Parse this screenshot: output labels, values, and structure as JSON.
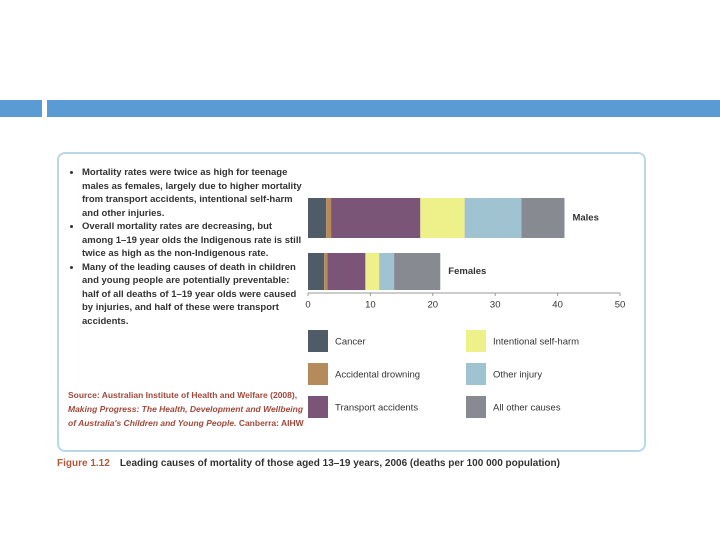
{
  "chart_data": {
    "type": "stacked-bar-horizontal",
    "categories": [
      "Males",
      "Females"
    ],
    "series": [
      {
        "name": "Cancer",
        "color": "#4f5b66",
        "values": [
          2.9,
          2.6
        ]
      },
      {
        "name": "Accidental drowning",
        "color": "#b58b5c",
        "values": [
          0.8,
          0.5
        ]
      },
      {
        "name": "Transport accidents",
        "color": "#7a5577",
        "values": [
          14.3,
          6.1
        ]
      },
      {
        "name": "Intentional self-harm",
        "color": "#eef08a",
        "values": [
          7.1,
          2.2
        ]
      },
      {
        "name": "Other injury",
        "color": "#9fc3d1",
        "values": [
          9.1,
          2.4
        ]
      },
      {
        "name": "All other causes",
        "color": "#878b91",
        "values": [
          6.9,
          7.4
        ]
      }
    ],
    "xlim": [
      0,
      50
    ],
    "xticks": [
      0,
      10,
      20,
      30,
      40,
      50
    ]
  },
  "bullets": [
    "Mortality rates were twice as high for teenage males as females, largely due to higher mortality from transport accidents, intentional self-harm and other injuries.",
    "Overall mortality rates are decreasing, but among 1–19 year olds the Indigenous rate is still twice as high as the non-Indigenous rate.",
    "Many of the leading causes of death in children and young people are potentially preventable: half of all deaths of 1–19 year olds were caused by injuries, and half of these were transport accidents."
  ],
  "source": {
    "prefix": "Source: Australian Institute of Health and Welfare (2008),",
    "title": "Making Progress: The Health, Development and Wellbeing of Australia's Children and Young People.",
    "suffix": "Canberra: AIHW"
  },
  "caption": {
    "label": "Figure 1.12",
    "text": "Leading causes of mortality of those aged 13–19 years, 2006 (deaths per 100 000 population)"
  }
}
